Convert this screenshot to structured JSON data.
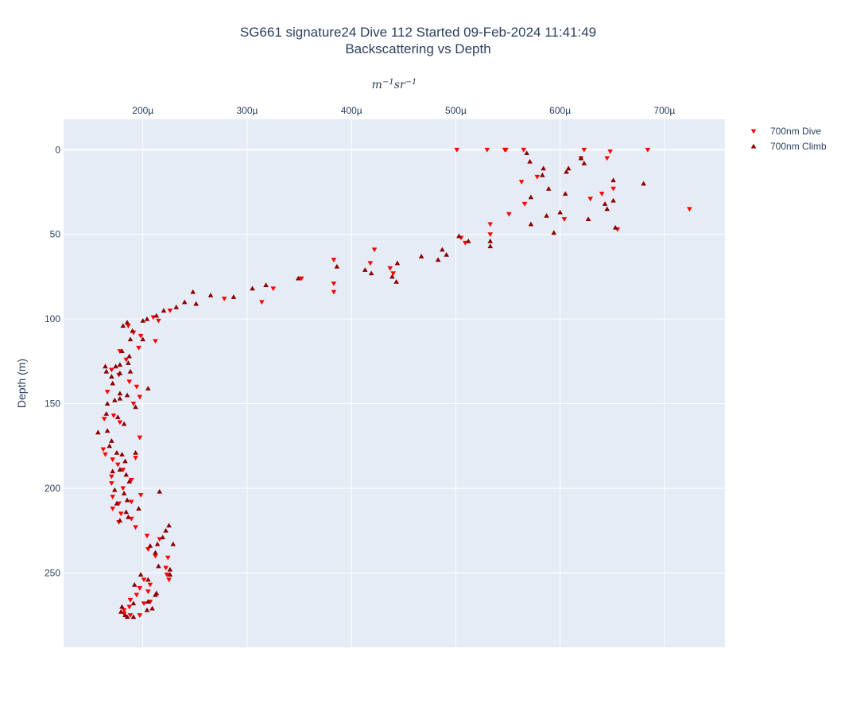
{
  "page": {
    "title_line1": "SG661 signature24 Dive 112 Started 09-Feb-2024 11:41:49",
    "title_line2": "Backscattering vs Depth"
  },
  "chart_data": {
    "type": "scatter",
    "title": "SG661 signature24 Dive 112 Started 09-Feb-2024 11:41:49 Backscattering vs Depth",
    "xlabel": "m^{-1} sr^{-1}",
    "ylabel": "Depth (m)",
    "x_axis_side": "top",
    "y_reversed": true,
    "xlim": [
      0.000124,
      0.000758
    ],
    "ylim": [
      294,
      -18
    ],
    "x_ticks": [
      0.0002,
      0.0003,
      0.0004,
      0.0005,
      0.0006,
      0.0007
    ],
    "x_tick_labels": [
      "200µ",
      "300µ",
      "400µ",
      "500µ",
      "600µ",
      "700µ"
    ],
    "y_ticks": [
      0,
      50,
      100,
      150,
      200,
      250
    ],
    "y_tick_labels": [
      "0",
      "50",
      "100",
      "150",
      "200",
      "250"
    ],
    "grid": true,
    "legend_position": "top-right",
    "series": [
      {
        "name": "700nm Dive",
        "color": "#ff0000",
        "marker": "triangle-down",
        "points": [
          [
            0.000501,
            0
          ],
          [
            0.00053,
            0
          ],
          [
            0.000547,
            0
          ],
          [
            0.000548,
            0
          ],
          [
            0.000565,
            0
          ],
          [
            0.000623,
            0
          ],
          [
            0.000648,
            1
          ],
          [
            0.000684,
            0
          ],
          [
            0.000645,
            5
          ],
          [
            0.00062,
            5
          ],
          [
            0.000578,
            16
          ],
          [
            0.000563,
            19
          ],
          [
            0.000651,
            23
          ],
          [
            0.00064,
            26
          ],
          [
            0.000629,
            29
          ],
          [
            0.000566,
            32
          ],
          [
            0.000604,
            41
          ],
          [
            0.000551,
            38
          ],
          [
            0.000724,
            35
          ],
          [
            0.000533,
            44
          ],
          [
            0.000533,
            50
          ],
          [
            0.000505,
            52
          ],
          [
            0.000655,
            47
          ],
          [
            0.000509,
            55
          ],
          [
            0.000422,
            59
          ],
          [
            0.000418,
            67
          ],
          [
            0.000383,
            65
          ],
          [
            0.000437,
            70
          ],
          [
            0.00044,
            73
          ],
          [
            0.000383,
            79
          ],
          [
            0.000383,
            84
          ],
          [
            0.000325,
            82
          ],
          [
            0.000352,
            76
          ],
          [
            0.000314,
            90
          ],
          [
            0.000278,
            88
          ],
          [
            0.000226,
            95
          ],
          [
            0.000215,
            101
          ],
          [
            0.00021,
            99
          ],
          [
            0.000186,
            104
          ],
          [
            0.000191,
            108
          ],
          [
            0.000198,
            110
          ],
          [
            0.000196,
            117
          ],
          [
            0.000212,
            113
          ],
          [
            0.000178,
            119
          ],
          [
            0.000184,
            124
          ],
          [
            0.00017,
            130
          ],
          [
            0.000177,
            133
          ],
          [
            0.000187,
            137
          ],
          [
            0.000194,
            140
          ],
          [
            0.000197,
            146
          ],
          [
            0.000166,
            143
          ],
          [
            0.000191,
            150
          ],
          [
            0.000163,
            159
          ],
          [
            0.000172,
            157
          ],
          [
            0.000178,
            161
          ],
          [
            0.000197,
            170
          ],
          [
            0.000162,
            177
          ],
          [
            0.000164,
            180
          ],
          [
            0.000171,
            183
          ],
          [
            0.000193,
            182
          ],
          [
            0.000176,
            186
          ],
          [
            0.000181,
            189
          ],
          [
            0.00017,
            193
          ],
          [
            0.000189,
            195
          ],
          [
            0.00017,
            197
          ],
          [
            0.000181,
            200
          ],
          [
            0.000198,
            204
          ],
          [
            0.000171,
            205
          ],
          [
            0.000177,
            209
          ],
          [
            0.000189,
            208
          ],
          [
            0.000171,
            212
          ],
          [
            0.000179,
            215
          ],
          [
            0.000189,
            218
          ],
          [
            0.000177,
            220
          ],
          [
            0.000193,
            223
          ],
          [
            0.000204,
            228
          ],
          [
            0.000216,
            230
          ],
          [
            0.000205,
            236
          ],
          [
            0.000212,
            240
          ],
          [
            0.000224,
            241
          ],
          [
            0.000222,
            247
          ],
          [
            0.000223,
            251
          ],
          [
            0.000225,
            254
          ],
          [
            0.000201,
            254
          ],
          [
            0.000207,
            257
          ],
          [
            0.000197,
            259
          ],
          [
            0.000194,
            263
          ],
          [
            0.000205,
            261
          ],
          [
            0.000207,
            267
          ],
          [
            0.000201,
            268
          ],
          [
            0.000188,
            266
          ],
          [
            0.000187,
            270
          ],
          [
            0.000182,
            272
          ],
          [
            0.000188,
            275
          ],
          [
            0.000182,
            274
          ],
          [
            0.000197,
            275
          ]
        ]
      },
      {
        "name": "700nm Climb",
        "color": "#8b0000",
        "marker": "triangle-up",
        "points": [
          [
            0.000568,
            2
          ],
          [
            0.000571,
            7
          ],
          [
            0.000584,
            11
          ],
          [
            0.000608,
            11
          ],
          [
            0.00062,
            5
          ],
          [
            0.000623,
            8
          ],
          [
            0.000606,
            13
          ],
          [
            0.000583,
            15
          ],
          [
            0.000589,
            23
          ],
          [
            0.000605,
            26
          ],
          [
            0.000572,
            28
          ],
          [
            0.000651,
            18
          ],
          [
            0.00068,
            20
          ],
          [
            0.000651,
            30
          ],
          [
            0.000643,
            32
          ],
          [
            0.000645,
            35
          ],
          [
            0.000627,
            41
          ],
          [
            0.0006,
            37
          ],
          [
            0.000587,
            39
          ],
          [
            0.000572,
            44
          ],
          [
            0.000653,
            46
          ],
          [
            0.000594,
            49
          ],
          [
            0.000533,
            54
          ],
          [
            0.000533,
            57
          ],
          [
            0.000512,
            54
          ],
          [
            0.000503,
            51
          ],
          [
            0.000487,
            59
          ],
          [
            0.000491,
            62
          ],
          [
            0.000467,
            63
          ],
          [
            0.000483,
            65
          ],
          [
            0.000444,
            67
          ],
          [
            0.000386,
            69
          ],
          [
            0.000413,
            71
          ],
          [
            0.000419,
            73
          ],
          [
            0.000439,
            75
          ],
          [
            0.000443,
            78
          ],
          [
            0.000349,
            76
          ],
          [
            0.000318,
            80
          ],
          [
            0.000305,
            82
          ],
          [
            0.000287,
            87
          ],
          [
            0.000265,
            86
          ],
          [
            0.000248,
            84
          ],
          [
            0.00024,
            90
          ],
          [
            0.000251,
            91
          ],
          [
            0.000232,
            93
          ],
          [
            0.00022,
            95
          ],
          [
            0.000213,
            98
          ],
          [
            0.000204,
            100
          ],
          [
            0.0002,
            101
          ],
          [
            0.000185,
            102
          ],
          [
            0.000181,
            104
          ],
          [
            0.00019,
            107
          ],
          [
            0.000188,
            112
          ],
          [
            0.0002,
            112
          ],
          [
            0.00018,
            119
          ],
          [
            0.000187,
            122
          ],
          [
            0.000174,
            128
          ],
          [
            0.000164,
            128
          ],
          [
            0.000165,
            131
          ],
          [
            0.00017,
            134
          ],
          [
            0.000178,
            132
          ],
          [
            0.000188,
            131
          ],
          [
            0.000186,
            126
          ],
          [
            0.000178,
            127
          ],
          [
            0.000171,
            138
          ],
          [
            0.000178,
            144
          ],
          [
            0.000178,
            147
          ],
          [
            0.000166,
            150
          ],
          [
            0.000173,
            148
          ],
          [
            0.000185,
            145
          ],
          [
            0.000193,
            152
          ],
          [
            0.000205,
            141
          ],
          [
            0.000165,
            156
          ],
          [
            0.000176,
            158
          ],
          [
            0.000182,
            162
          ],
          [
            0.000157,
            167
          ],
          [
            0.000166,
            166
          ],
          [
            0.00017,
            172
          ],
          [
            0.000168,
            175
          ],
          [
            0.000175,
            179
          ],
          [
            0.00018,
            180
          ],
          [
            0.000193,
            179
          ],
          [
            0.000183,
            184
          ],
          [
            0.000171,
            190
          ],
          [
            0.000178,
            189
          ],
          [
            0.000184,
            192
          ],
          [
            0.000187,
            196
          ],
          [
            0.000173,
            201
          ],
          [
            0.000182,
            203
          ],
          [
            0.000216,
            202
          ],
          [
            0.000175,
            209
          ],
          [
            0.000185,
            207
          ],
          [
            0.000184,
            214
          ],
          [
            0.000178,
            219
          ],
          [
            0.000186,
            217
          ],
          [
            0.000196,
            212
          ],
          [
            0.000225,
            222
          ],
          [
            0.000222,
            225
          ],
          [
            0.000219,
            229
          ],
          [
            0.000229,
            233
          ],
          [
            0.000214,
            233
          ],
          [
            0.000207,
            234
          ],
          [
            0.000212,
            238
          ],
          [
            0.000215,
            246
          ],
          [
            0.000226,
            248
          ],
          [
            0.000226,
            251
          ],
          [
            0.000198,
            251
          ],
          [
            0.000205,
            254
          ],
          [
            0.000192,
            257
          ],
          [
            0.000213,
            262
          ],
          [
            0.000205,
            267
          ],
          [
            0.000204,
            272
          ],
          [
            0.000212,
            263
          ],
          [
            0.000209,
            271
          ],
          [
            0.000191,
            268
          ],
          [
            0.00018,
            270
          ],
          [
            0.000185,
            276
          ],
          [
            0.000191,
            276
          ],
          [
            0.000183,
            275
          ],
          [
            0.000179,
            273
          ]
        ]
      }
    ]
  }
}
